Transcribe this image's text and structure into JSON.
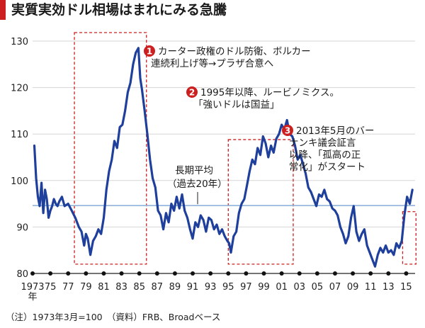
{
  "title": "実質実効ドル相場はまれにみる急騰",
  "footer": "（注）1973年3月=100　（資料）FRB、Broadベース",
  "colors": {
    "accent": "#cc1f1f",
    "series": "#1f3f9c",
    "average": "#8fb3d9",
    "grid": "#d6d6d6",
    "box": "#cc1f1f"
  },
  "annotations": [
    {
      "number": "1",
      "lines": [
        "カーター政権のドル防衛、ボルカー",
        "連続利上げ等→プラザ合意へ"
      ]
    },
    {
      "number": "2",
      "lines": [
        "1995年以降、ルービノミクス。",
        "「強いドルは国益」"
      ]
    },
    {
      "number": "3",
      "lines": [
        "2013年5月のバー",
        "ナンキ議会証言",
        "以降、「孤高の正",
        "常化」がスタート"
      ]
    }
  ],
  "average_label": [
    "長期平均",
    "（過去20年）"
  ],
  "x_unit_label": "年",
  "chart_data": {
    "type": "line",
    "xlim": [
      1973,
      2016
    ],
    "ylim": [
      80,
      130
    ],
    "yticks": [
      80,
      90,
      100,
      110,
      120,
      130
    ],
    "xtick_labels": [
      "1973",
      "75",
      "77",
      "79",
      "81",
      "83",
      "85",
      "87",
      "89",
      "91",
      "93",
      "95",
      "97",
      "99",
      "01",
      "03",
      "05",
      "07",
      "09",
      "11",
      "13",
      "15"
    ],
    "xtick_values": [
      1973,
      1975,
      1977,
      1979,
      1981,
      1983,
      1985,
      1987,
      1989,
      1991,
      1993,
      1995,
      1997,
      1999,
      2001,
      2003,
      2005,
      2007,
      2009,
      2011,
      2013,
      2015
    ],
    "long_term_average": 94.6,
    "grid": true,
    "series": [
      {
        "x": [
          1973.2,
          1973.4,
          1973.6,
          1973.8,
          1974.0,
          1974.2,
          1974.4,
          1974.6,
          1974.8,
          1975.0,
          1975.2,
          1975.4,
          1975.6,
          1975.8,
          1976.0,
          1976.3,
          1976.6,
          1977.0,
          1977.4,
          1977.8,
          1978.2,
          1978.5,
          1978.8,
          1979.0,
          1979.2,
          1979.5,
          1979.8,
          1980.1,
          1980.4,
          1980.7,
          1981.0,
          1981.3,
          1981.6,
          1981.9,
          1982.2,
          1982.5,
          1982.8,
          1983.1,
          1983.4,
          1983.7,
          1984.0,
          1984.3,
          1984.6,
          1984.9,
          1985.1,
          1985.3,
          1985.6,
          1985.9,
          1986.2,
          1986.5,
          1986.8,
          1987.1,
          1987.4,
          1987.7,
          1988.0,
          1988.3,
          1988.6,
          1988.9,
          1989.2,
          1989.5,
          1989.8,
          1990.1,
          1990.4,
          1990.7,
          1991.0,
          1991.3,
          1991.6,
          1991.9,
          1992.2,
          1992.5,
          1992.8,
          1993.1,
          1993.4,
          1993.7,
          1994.0,
          1994.3,
          1994.6,
          1994.9,
          1995.1,
          1995.3,
          1995.6,
          1995.9,
          1996.2,
          1996.5,
          1996.8,
          1997.1,
          1997.4,
          1997.7,
          1998.0,
          1998.3,
          1998.6,
          1998.9,
          1999.2,
          1999.5,
          1999.8,
          2000.1,
          2000.4,
          2000.7,
          2001.0,
          2001.3,
          2001.6,
          2001.9,
          2002.2,
          2002.5,
          2002.8,
          2003.1,
          2003.4,
          2003.7,
          2004.0,
          2004.3,
          2004.6,
          2004.9,
          2005.2,
          2005.5,
          2005.8,
          2006.1,
          2006.4,
          2006.7,
          2007.0,
          2007.3,
          2007.6,
          2007.9,
          2008.2,
          2008.5,
          2008.8,
          2009.1,
          2009.4,
          2009.7,
          2010.0,
          2010.3,
          2010.6,
          2010.9,
          2011.2,
          2011.5,
          2011.8,
          2012.1,
          2012.4,
          2012.7,
          2013.0,
          2013.3,
          2013.6,
          2013.9,
          2014.2,
          2014.5,
          2014.8,
          2015.1,
          2015.4,
          2015.7
        ],
        "values": [
          107.5,
          100.5,
          96.5,
          94.5,
          99.5,
          93.0,
          98.0,
          96.0,
          92.0,
          93.5,
          94.5,
          96.0,
          95.0,
          94.5,
          95.5,
          96.5,
          94.5,
          95.0,
          93.5,
          92.0,
          90.0,
          89.0,
          86.0,
          88.5,
          87.5,
          84.0,
          87.0,
          88.0,
          89.5,
          88.5,
          92.0,
          98.0,
          102.0,
          104.5,
          108.5,
          107.0,
          111.5,
          112.0,
          115.0,
          119.0,
          121.0,
          125.0,
          127.5,
          128.5,
          122.0,
          119.5,
          115.0,
          110.0,
          104.5,
          100.5,
          98.5,
          93.5,
          92.5,
          89.5,
          93.0,
          91.0,
          95.0,
          93.5,
          96.5,
          94.0,
          97.0,
          93.5,
          92.0,
          89.5,
          87.5,
          91.0,
          90.0,
          92.5,
          91.5,
          89.0,
          92.0,
          91.5,
          89.5,
          90.5,
          88.5,
          89.5,
          88.0,
          87.0,
          86.5,
          84.5,
          88.0,
          89.0,
          93.0,
          95.0,
          96.0,
          99.0,
          102.0,
          104.5,
          103.5,
          107.0,
          105.5,
          109.5,
          108.0,
          105.0,
          107.5,
          106.0,
          109.0,
          110.0,
          112.0,
          111.0,
          113.0,
          110.0,
          109.5,
          107.5,
          104.5,
          105.5,
          103.5,
          101.5,
          98.5,
          97.5,
          96.0,
          94.5,
          97.0,
          96.5,
          98.0,
          96.0,
          95.5,
          94.0,
          93.5,
          92.5,
          90.0,
          88.5,
          86.5,
          88.0,
          92.0,
          94.5,
          89.0,
          87.0,
          88.5,
          89.5,
          86.0,
          84.5,
          83.0,
          81.5,
          84.0,
          85.5,
          84.5,
          86.0,
          84.5,
          85.0,
          84.0,
          86.5,
          85.5,
          87.0,
          92.5,
          96.5,
          95.0,
          98.0
        ]
      }
    ]
  }
}
